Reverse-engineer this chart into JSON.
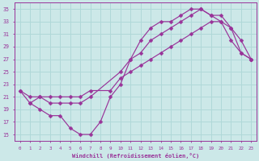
{
  "xlabel": "Windchill (Refroidissement éolien,°C)",
  "xlim": [
    -0.5,
    23.5
  ],
  "ylim": [
    14,
    36
  ],
  "yticks": [
    15,
    17,
    19,
    21,
    23,
    25,
    27,
    29,
    31,
    33,
    35
  ],
  "xticks": [
    0,
    1,
    2,
    3,
    4,
    5,
    6,
    7,
    8,
    9,
    10,
    11,
    12,
    13,
    14,
    15,
    16,
    17,
    18,
    19,
    20,
    21,
    22,
    23
  ],
  "bg_color": "#cce8e8",
  "grid_color": "#b0d8d8",
  "line_color": "#993399",
  "markersize": 2.5,
  "line1_x": [
    0,
    1,
    2,
    3,
    4,
    5,
    6,
    7,
    8,
    9,
    10,
    11,
    12,
    13,
    14,
    15,
    16,
    17,
    18,
    19,
    20,
    21,
    22,
    23
  ],
  "line1_y": [
    22,
    20,
    19,
    18,
    18,
    16,
    15,
    15,
    17,
    21,
    23,
    27,
    30,
    32,
    33,
    33,
    34,
    35,
    35,
    34,
    33,
    30,
    28,
    27
  ],
  "line2_x": [
    1,
    2,
    3,
    4,
    5,
    6,
    7,
    9,
    10,
    11,
    12,
    13,
    14,
    15,
    16,
    17,
    18,
    19,
    20,
    21,
    22,
    23
  ],
  "line2_y": [
    20,
    21,
    21,
    21,
    21,
    21,
    22,
    22,
    24,
    25,
    26,
    27,
    28,
    29,
    30,
    31,
    32,
    33,
    33,
    32,
    30,
    27
  ],
  "line3_x": [
    0,
    1,
    2,
    3,
    4,
    5,
    6,
    7,
    10,
    11,
    12,
    13,
    14,
    15,
    16,
    17,
    18,
    19,
    20,
    21,
    22,
    23
  ],
  "line3_y": [
    22,
    21,
    21,
    20,
    20,
    20,
    20,
    21,
    25,
    27,
    28,
    30,
    31,
    32,
    33,
    34,
    35,
    34,
    34,
    32,
    28,
    27
  ]
}
